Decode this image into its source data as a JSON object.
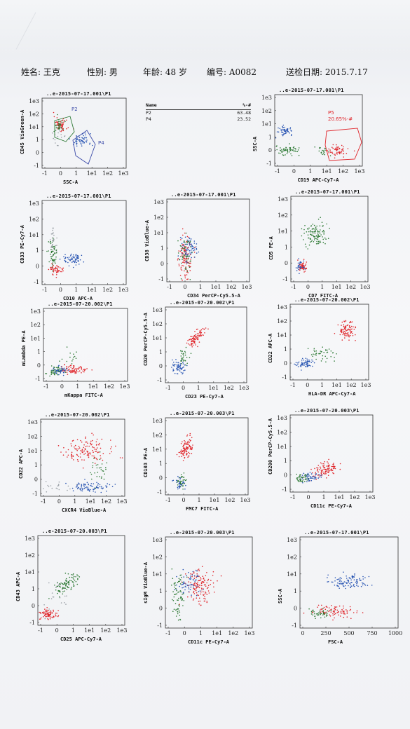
{
  "header": {
    "name_label": "姓名: 王克",
    "sex_label": "性别: 男",
    "age_label": "年龄: 48 岁",
    "id_label": "编号: A0082",
    "date_label": "送检日期: 2015.7.17"
  },
  "stats_table": {
    "col_name": "Name",
    "col_value": "%-#",
    "rows": [
      {
        "name": "P2",
        "value": "63.48"
      },
      {
        "name": "P4",
        "value": "23.52"
      }
    ]
  },
  "ticks": {
    "log": [
      "-1",
      "0",
      "1",
      "1e1",
      "1e2",
      "1e3"
    ],
    "fsc": [
      "0",
      "250",
      "500",
      "750",
      "1000"
    ]
  },
  "panels": [
    {
      "title": "..e-2015-07-17.001\\P1",
      "xlabel": "SSC-A",
      "ylabel": "CD45 VioGreen-A",
      "gates": [
        {
          "name": "P2"
        },
        {
          "name": "P4"
        }
      ]
    },
    {
      "title": "..e-2015-07-17.001\\P1",
      "xlabel": "CD19 APC-Cy7-A",
      "ylabel": "SSC-A",
      "gates": [
        {
          "name": "P5",
          "pct": "20.65%-#"
        }
      ]
    },
    {
      "title": "..e-2015-07-17.001\\P1",
      "xlabel": "CD10 APC-A",
      "ylabel": "CD33 PE-Cy7-A"
    },
    {
      "title": "..e-2015-07-17.001\\P1",
      "xlabel": "CD34 PerCP-Cy5.5-A",
      "ylabel": "CD38 VioBlue-A"
    },
    {
      "title": "..e-2015-07-17.001\\P1",
      "xlabel": "CD7 FITC-A",
      "ylabel": "CD5 PE-A"
    },
    {
      "title": "..e-2015-07-20.002\\P1",
      "xlabel": "mKappa FITC-A",
      "ylabel": "mLambda PE-A"
    },
    {
      "title": "..e-2015-07-20.002\\P1",
      "xlabel": "CD23 PE-Cy7-A",
      "ylabel": "CD20 PerCP-Cy5.5-A"
    },
    {
      "title": "..e-2015-07-20.002\\P1",
      "xlabel": "HLA-DR APC-Cy7-A",
      "ylabel": "CD22 APC-A"
    },
    {
      "title": "..e-2015-07-20.002\\P1",
      "xlabel": "CXCR4 VioBlue-A",
      "ylabel": "CD22 APC-A"
    },
    {
      "title": "..e-2015-07-20.003\\P1",
      "xlabel": "FMC7 FITC-A",
      "ylabel": "CD103 PE-A"
    },
    {
      "title": "..e-2015-07-20.003\\P1",
      "xlabel": "CD11c PE-Cy7-A",
      "ylabel": "CD200 PerCP-Cy5.5-A"
    },
    {
      "title": "..e-2015-07-20.003\\P1",
      "xlabel": "CD25 APC-Cy7-A",
      "ylabel": "CD43 APC-A"
    },
    {
      "title": "..e-2015-07-20.003\\P1",
      "xlabel": "CD11c PE-Cy7-A",
      "ylabel": "sIgM VioBlue-A"
    },
    {
      "title": "..e-2015-07-17.001\\P1",
      "xlabel": "FSC-A",
      "ylabel": "SSC-A"
    }
  ],
  "colors": {
    "red": "#e0262b",
    "blue": "#2a56b3",
    "green": "#2e7a35",
    "gray": "#9aa0a6",
    "gate": "#3a4aa8"
  }
}
